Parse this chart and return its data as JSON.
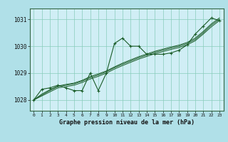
{
  "xlabel": "Graphe pression niveau de la mer (hPa)",
  "bg_color": "#b0e0e8",
  "plot_bg_color": "#d0eef5",
  "grid_color": "#88ccbb",
  "line_color": "#1a5c28",
  "x_ticks": [
    0,
    1,
    2,
    3,
    4,
    5,
    6,
    7,
    8,
    9,
    10,
    11,
    12,
    13,
    14,
    15,
    16,
    17,
    18,
    19,
    20,
    21,
    22,
    23
  ],
  "y_ticks": [
    1028,
    1029,
    1030,
    1031
  ],
  "ylim": [
    1027.6,
    1031.4
  ],
  "xlim": [
    -0.5,
    23.5
  ],
  "main_line": [
    1028.0,
    1028.4,
    1028.45,
    1028.55,
    1028.45,
    1028.35,
    1028.35,
    1029.0,
    1028.35,
    1029.0,
    1030.1,
    1030.3,
    1030.0,
    1030.0,
    1029.7,
    1029.7,
    1029.7,
    1029.75,
    1029.85,
    1030.05,
    1030.45,
    1030.75,
    1031.05,
    1030.95
  ],
  "smooth_line1": [
    1028.0,
    1028.15,
    1028.3,
    1028.45,
    1028.5,
    1028.55,
    1028.65,
    1028.78,
    1028.88,
    1029.0,
    1029.15,
    1029.28,
    1029.4,
    1029.52,
    1029.62,
    1029.72,
    1029.8,
    1029.88,
    1029.95,
    1030.05,
    1030.2,
    1030.45,
    1030.72,
    1030.95
  ],
  "smooth_line2": [
    1028.0,
    1028.18,
    1028.35,
    1028.5,
    1028.55,
    1028.6,
    1028.7,
    1028.83,
    1028.93,
    1029.05,
    1029.2,
    1029.33,
    1029.45,
    1029.57,
    1029.67,
    1029.77,
    1029.85,
    1029.93,
    1030.0,
    1030.1,
    1030.25,
    1030.5,
    1030.78,
    1031.0
  ],
  "smooth_line3": [
    1028.0,
    1028.22,
    1028.38,
    1028.52,
    1028.58,
    1028.63,
    1028.73,
    1028.87,
    1028.97,
    1029.08,
    1029.23,
    1029.37,
    1029.49,
    1029.61,
    1029.71,
    1029.81,
    1029.89,
    1029.97,
    1030.04,
    1030.14,
    1030.3,
    1030.55,
    1030.83,
    1031.05
  ],
  "xlabel_fontsize": 6.0,
  "ytick_fontsize": 5.5,
  "xtick_fontsize": 4.5
}
